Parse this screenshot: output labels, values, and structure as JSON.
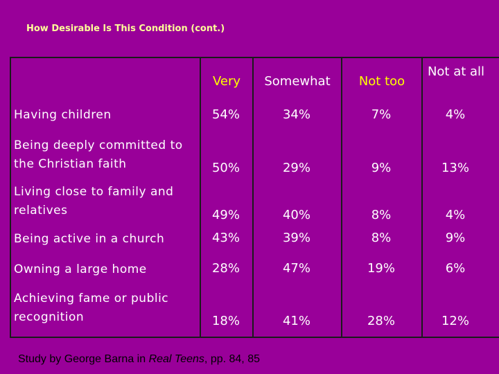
{
  "title": "How Desirable Is This Condition (cont.)",
  "columns": [
    "Very",
    "Somewhat",
    "Not too",
    "Not at all"
  ],
  "rows": [
    {
      "label": "Having children",
      "values": [
        "54%",
        "34%",
        "7%",
        "4%"
      ]
    },
    {
      "label": "Being deeply committed to the Christian faith",
      "values": [
        "50%",
        "29%",
        "9%",
        "13%"
      ]
    },
    {
      "label": "Living close to family and relatives",
      "values": [
        "49%",
        "40%",
        "8%",
        "4%"
      ]
    },
    {
      "label": "Being active in a church",
      "values": [
        "43%",
        "39%",
        "8%",
        "9%"
      ]
    },
    {
      "label": "Owning a large home",
      "values": [
        "28%",
        "47%",
        "19%",
        "6%"
      ]
    },
    {
      "label": "Achieving fame or public recognition",
      "values": [
        "18%",
        "41%",
        "28%",
        "12%"
      ]
    }
  ],
  "footer": {
    "prefix": "Study by George Barna in ",
    "book": "Real Teens",
    "suffix": ", pp. 84, 85"
  },
  "colors": {
    "background": "#990099",
    "title": "#ffff99",
    "accent_header": "#ffff00",
    "text": "#ffffff"
  }
}
